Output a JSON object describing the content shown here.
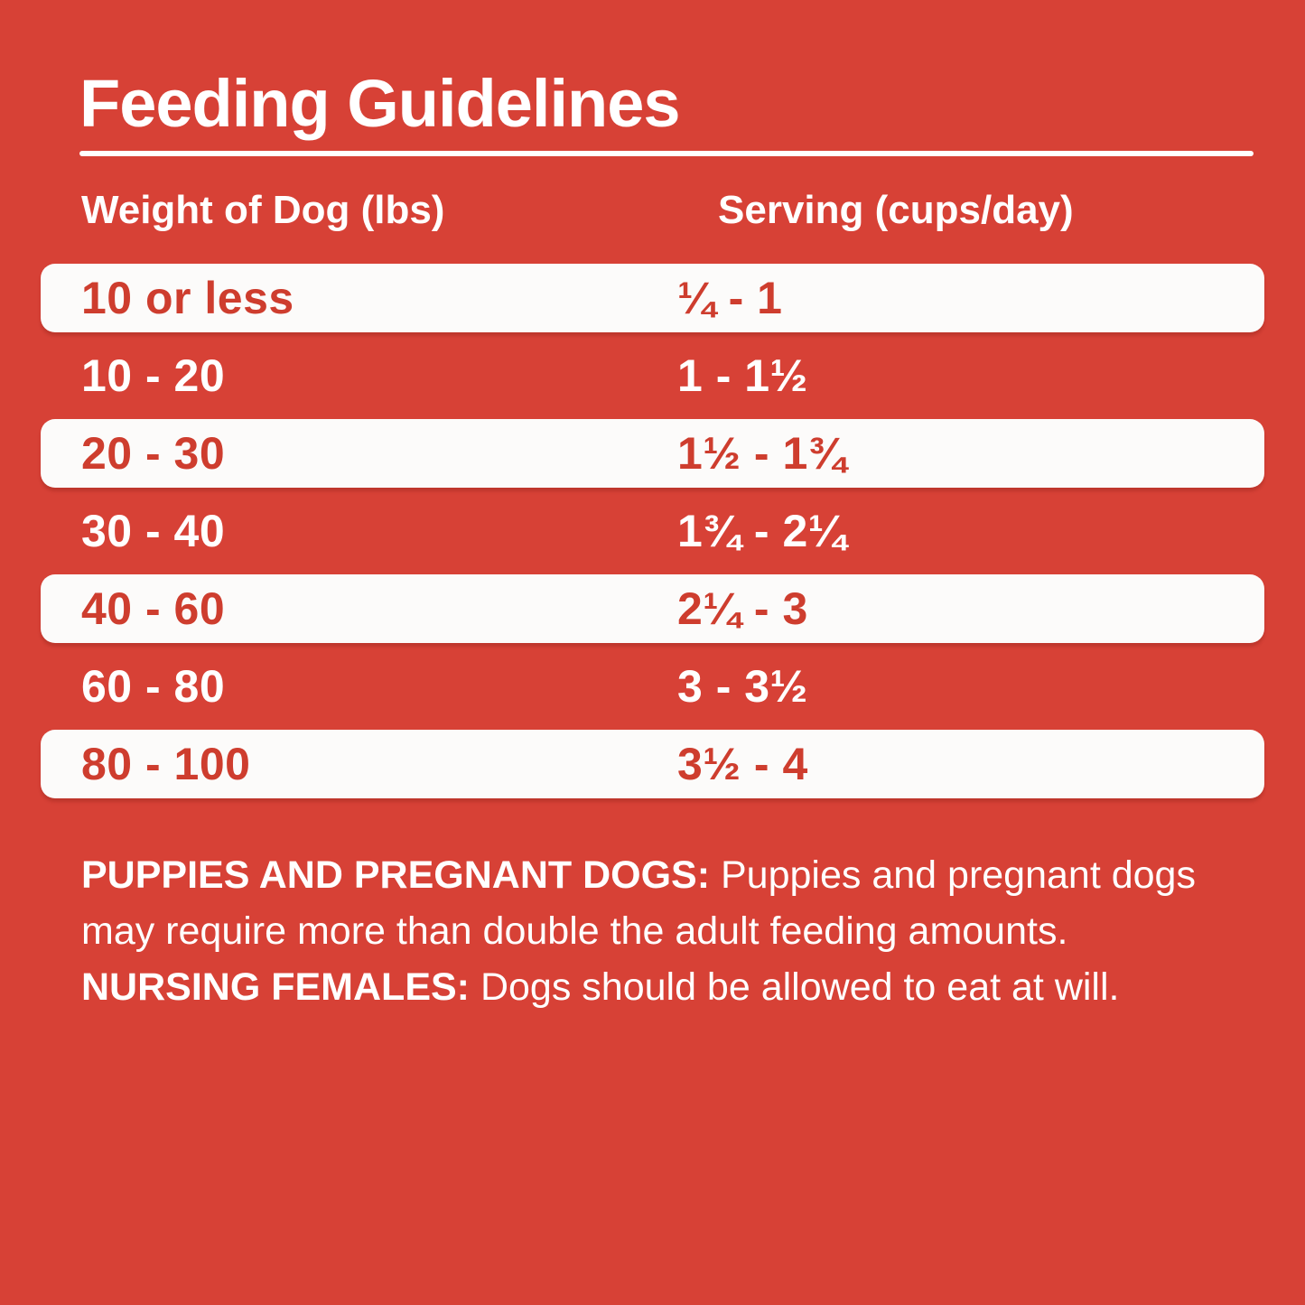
{
  "page": {
    "title": "Feeding Guidelines",
    "colors": {
      "background_red": "#D74136",
      "row_white": "#FCFBFA",
      "text_red_on_white": "#CE3D2E",
      "text_white": "#FFFFFF"
    }
  },
  "table": {
    "columns": [
      "Weight of Dog (lbs)",
      "Serving (cups/day)"
    ],
    "rows": [
      {
        "weight": "10 or less",
        "serving": "¼ - 1",
        "highlighted": true
      },
      {
        "weight": "10 - 20",
        "serving": "1 - 1½",
        "highlighted": false
      },
      {
        "weight": "20 - 30",
        "serving": "1½ - 1¾",
        "highlighted": true
      },
      {
        "weight": "30 - 40",
        "serving": "1¾ - 2¼",
        "highlighted": false
      },
      {
        "weight": "40 - 60",
        "serving": "2¼ - 3",
        "highlighted": true
      },
      {
        "weight": "60 - 80",
        "serving": "3 - 3½",
        "highlighted": false
      },
      {
        "weight": "80 - 100",
        "serving": "3½ - 4",
        "highlighted": true
      }
    ]
  },
  "footnote": {
    "segments": [
      {
        "text": "PUPPIES AND PREGNANT DOGS:",
        "bold": true
      },
      {
        "text": " Puppies and pregnant dogs may require more than double the adult feeding amounts. ",
        "bold": false
      },
      {
        "text": "NURSING FEMALES:",
        "bold": true
      },
      {
        "text": " Dogs should be allowed to eat at will.",
        "bold": false
      }
    ]
  }
}
